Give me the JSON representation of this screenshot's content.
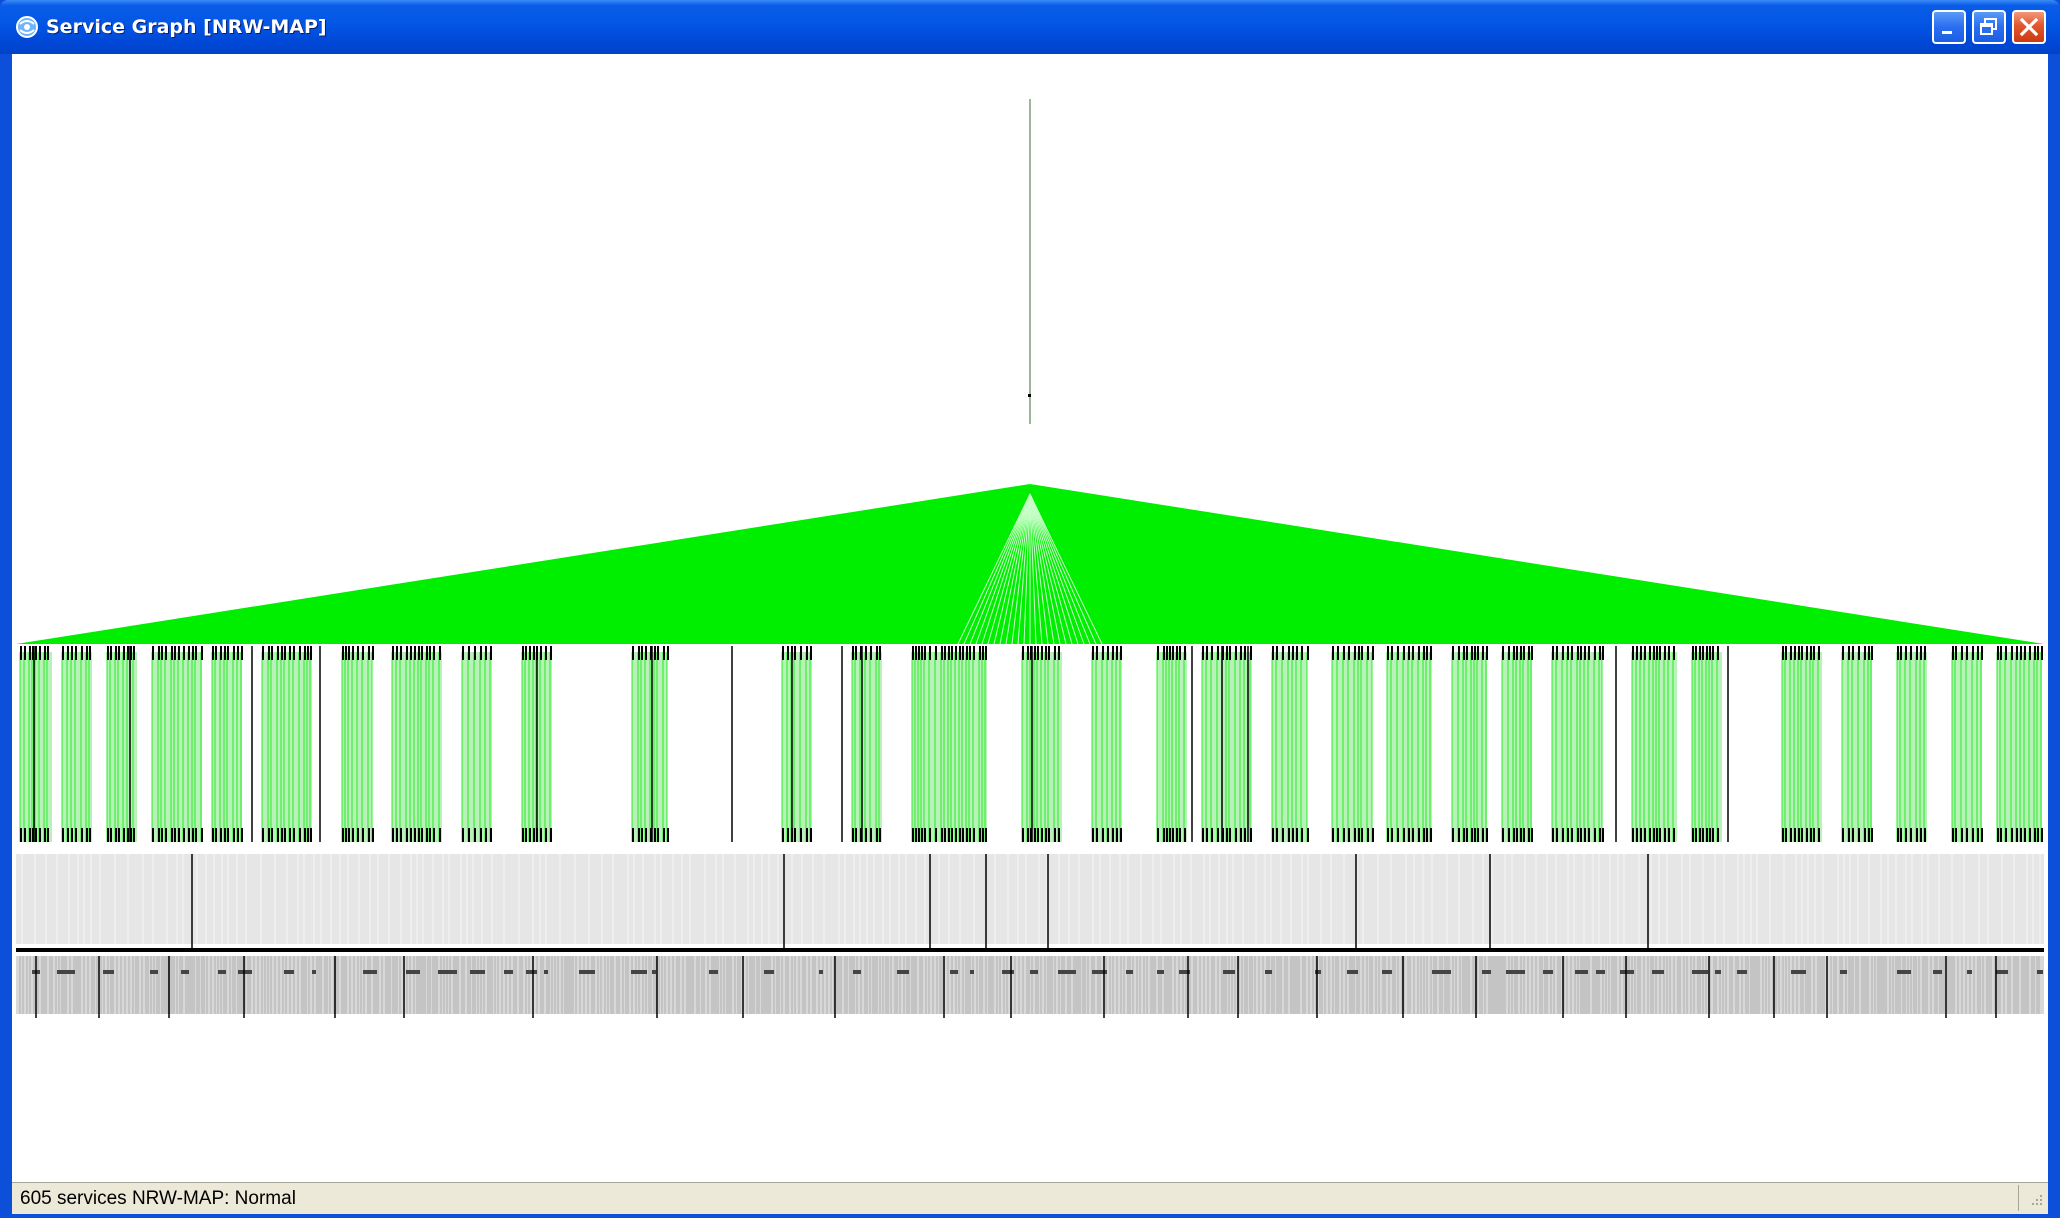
{
  "window": {
    "title": "Service Graph [NRW-MAP]",
    "icon": "service-graph-app-icon",
    "controls": [
      "minimize-icon",
      "restore-icon",
      "close-icon"
    ]
  },
  "statusbar": {
    "text": "605 services  NRW-MAP: Normal",
    "service_count": 605,
    "map_name": "NRW-MAP",
    "state": "Normal"
  },
  "graph": {
    "root_count": 1,
    "edge_color": "#00ee00",
    "node_color": "#000000",
    "faded_band_color": "#e6e6e6"
  },
  "colors": {
    "titlebar": "#0355e4",
    "client_bg": "#ffffff",
    "statusbar_bg": "#ece9d8",
    "close_button": "#e2562e"
  }
}
